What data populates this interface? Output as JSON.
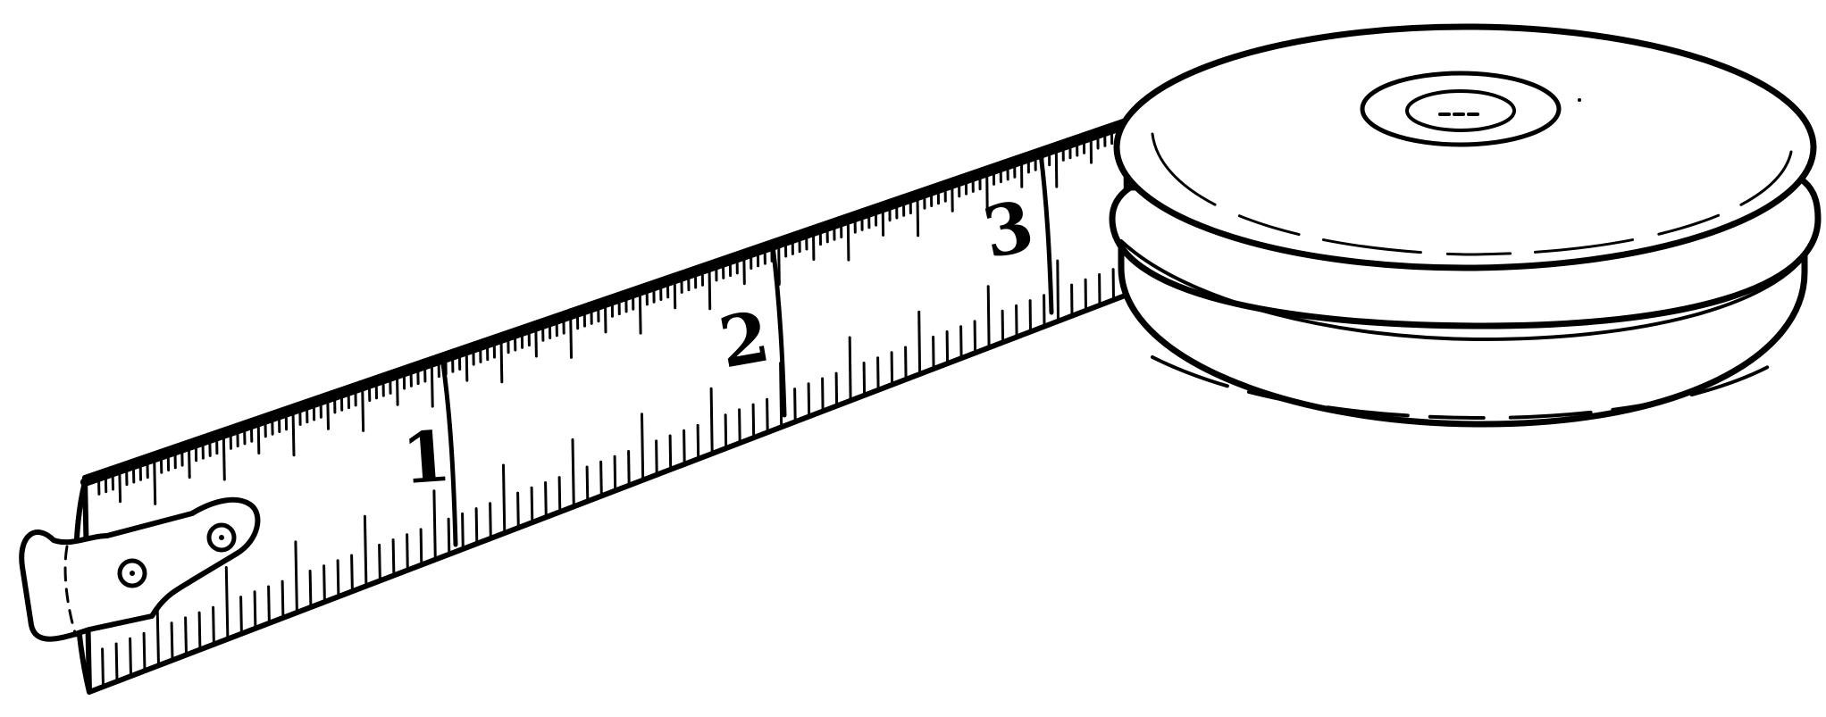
{
  "illustration": {
    "subject": "tape measure",
    "style": "black line art",
    "colors": {
      "ink": "#000000",
      "paper": "#ffffff"
    },
    "tape": {
      "labels": [
        "1",
        "2",
        "3"
      ]
    }
  }
}
